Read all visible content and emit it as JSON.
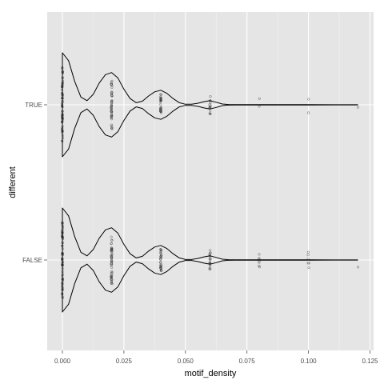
{
  "chart_data": {
    "type": "violin",
    "xlabel": "motif_density",
    "ylabel": "different",
    "xlim": [
      -0.005,
      0.125
    ],
    "x_ticks": [
      0.0,
      0.025,
      0.05,
      0.075,
      0.1,
      0.125
    ],
    "x_tick_labels": [
      "0.000",
      "0.025",
      "0.050",
      "0.075",
      "0.100",
      "0.125"
    ],
    "categories": [
      "FALSE",
      "TRUE"
    ],
    "grid": true,
    "background": "#e5e5e5",
    "grid_color": "#ffffff",
    "violin_outline_color": "#000000",
    "point_color": "#333333",
    "groups": [
      {
        "name": "TRUE",
        "violin_profile": {
          "x": [
            0.0,
            0.0025,
            0.005,
            0.0075,
            0.01,
            0.0125,
            0.015,
            0.0175,
            0.02,
            0.0225,
            0.025,
            0.0275,
            0.03,
            0.0325,
            0.035,
            0.0375,
            0.04,
            0.0425,
            0.045,
            0.0475,
            0.05,
            0.0525,
            0.055,
            0.0575,
            0.06,
            0.0625,
            0.065,
            0.0675,
            0.07,
            0.08,
            0.09,
            0.1,
            0.11,
            0.12
          ],
          "density": [
            1.0,
            0.85,
            0.45,
            0.15,
            0.08,
            0.2,
            0.42,
            0.58,
            0.62,
            0.52,
            0.3,
            0.12,
            0.04,
            0.07,
            0.17,
            0.25,
            0.28,
            0.22,
            0.12,
            0.04,
            0.01,
            0.01,
            0.03,
            0.06,
            0.08,
            0.05,
            0.015,
            0.006,
            0.004,
            0.003,
            0.003,
            0.003,
            0.002,
            0.002
          ]
        },
        "points": [
          {
            "x": 0.0,
            "n": 60
          },
          {
            "x": 0.02,
            "n": 45
          },
          {
            "x": 0.04,
            "n": 28
          },
          {
            "x": 0.06,
            "n": 14
          },
          {
            "x": 0.08,
            "n": 2
          },
          {
            "x": 0.1,
            "n": 2
          },
          {
            "x": 0.12,
            "n": 1
          }
        ]
      },
      {
        "name": "FALSE",
        "violin_profile": {
          "x": [
            0.0,
            0.0025,
            0.005,
            0.0075,
            0.01,
            0.0125,
            0.015,
            0.0175,
            0.02,
            0.0225,
            0.025,
            0.0275,
            0.03,
            0.0325,
            0.035,
            0.0375,
            0.04,
            0.0425,
            0.045,
            0.0475,
            0.05,
            0.0525,
            0.055,
            0.0575,
            0.06,
            0.0625,
            0.065,
            0.0675,
            0.07,
            0.08,
            0.09,
            0.1,
            0.11,
            0.12
          ],
          "density": [
            1.0,
            0.85,
            0.45,
            0.15,
            0.08,
            0.2,
            0.42,
            0.58,
            0.62,
            0.52,
            0.3,
            0.12,
            0.04,
            0.07,
            0.17,
            0.25,
            0.28,
            0.22,
            0.12,
            0.04,
            0.01,
            0.01,
            0.03,
            0.06,
            0.08,
            0.05,
            0.015,
            0.006,
            0.004,
            0.003,
            0.003,
            0.003,
            0.002,
            0.002
          ]
        },
        "points": [
          {
            "x": 0.0,
            "n": 60
          },
          {
            "x": 0.02,
            "n": 50
          },
          {
            "x": 0.04,
            "n": 30
          },
          {
            "x": 0.06,
            "n": 18
          },
          {
            "x": 0.08,
            "n": 7
          },
          {
            "x": 0.1,
            "n": 6
          },
          {
            "x": 0.12,
            "n": 1
          }
        ]
      }
    ]
  }
}
